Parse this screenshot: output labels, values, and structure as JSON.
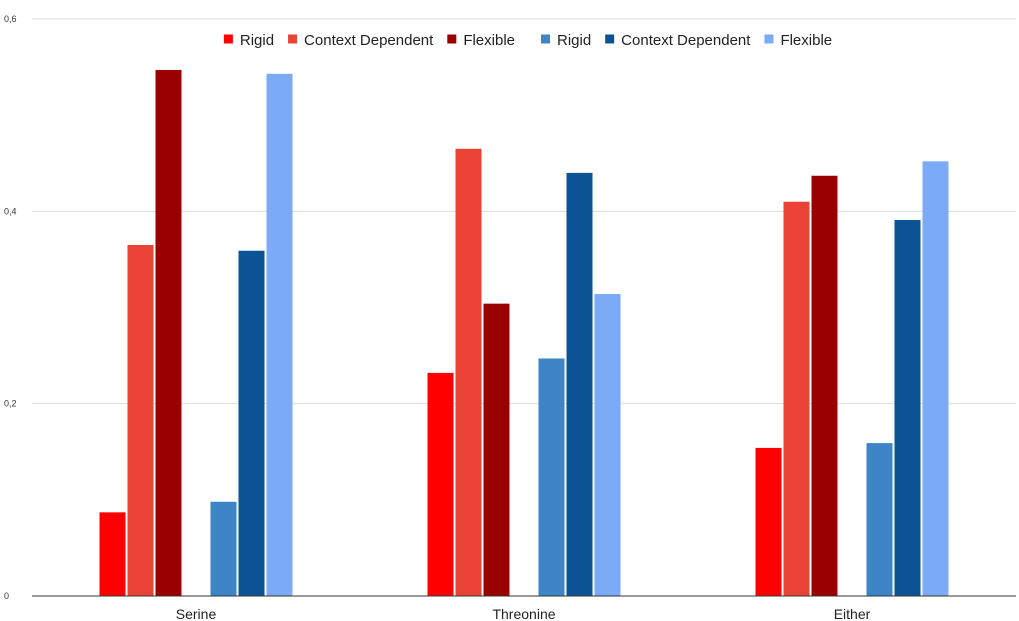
{
  "chart_data": {
    "type": "bar",
    "categories": [
      "Serine",
      "Threonine",
      "Either"
    ],
    "ylim": [
      0,
      0.6
    ],
    "yticks": [
      "0",
      "0,2",
      "0,4",
      "0,6"
    ],
    "grid": true,
    "legend_position": "top",
    "series": [
      {
        "name": "Rigid",
        "color": "#ff0000",
        "values": [
          0.087,
          0.232,
          0.154
        ]
      },
      {
        "name": "Context Dependent",
        "color": "#ea4335",
        "values": [
          0.365,
          0.465,
          0.41
        ]
      },
      {
        "name": "Flexible",
        "color": "#990000",
        "values": [
          0.547,
          0.304,
          0.437
        ]
      },
      {
        "name": "Rigid",
        "color": "#3d85c6",
        "values": [
          0.098,
          0.247,
          0.159
        ]
      },
      {
        "name": "Context Dependent",
        "color": "#0b5394",
        "values": [
          0.359,
          0.44,
          0.391
        ]
      },
      {
        "name": "Flexible",
        "color": "#7baaf7",
        "values": [
          0.543,
          0.314,
          0.452
        ]
      }
    ]
  }
}
